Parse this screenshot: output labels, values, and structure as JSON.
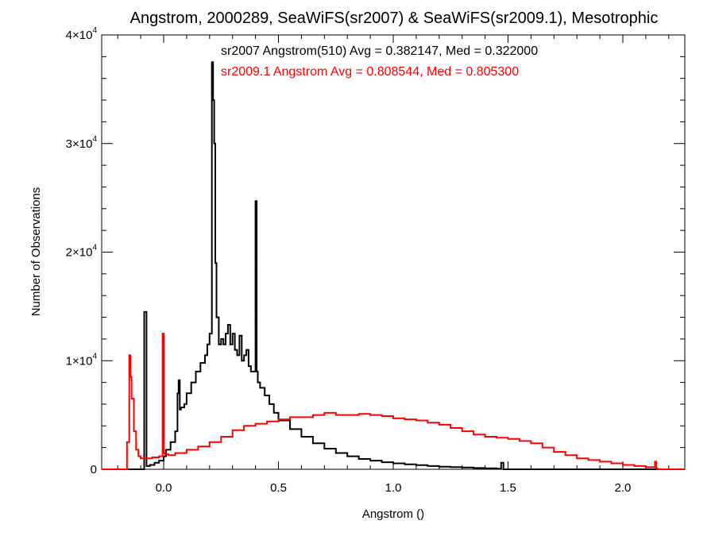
{
  "chart_data": {
    "type": "line",
    "title": "Angstrom, 2000289, SeaWiFS(sr2007) & SeaWiFS(sr2009.1), Mesotrophic",
    "xlabel": "Angstrom ()",
    "ylabel": "Number of Observations",
    "xlim": [
      -0.27,
      2.27
    ],
    "ylim": [
      0,
      40000
    ],
    "x_ticks": [
      {
        "value": 0.0,
        "label": "0.0"
      },
      {
        "value": 0.5,
        "label": "0.5"
      },
      {
        "value": 1.0,
        "label": "1.0"
      },
      {
        "value": 1.5,
        "label": "1.5"
      },
      {
        "value": 2.0,
        "label": "2.0"
      }
    ],
    "y_ticks": [
      {
        "value": 0,
        "mantissa": "0",
        "exponent": ""
      },
      {
        "value": 10000,
        "mantissa": "1×10",
        "exponent": "4"
      },
      {
        "value": 20000,
        "mantissa": "2×10",
        "exponent": "4"
      },
      {
        "value": 30000,
        "mantissa": "3×10",
        "exponent": "4"
      },
      {
        "value": 40000,
        "mantissa": "4×10",
        "exponent": "4"
      }
    ],
    "grid": false,
    "step": true,
    "annotations": [
      {
        "text": "sr2007 Angstrom(510) Avg = 0.382147, Med = 0.322000",
        "color": "#000000"
      },
      {
        "text": "sr2009.1 Angstrom Avg = 0.808544, Med = 0.805300",
        "color": "#ff0000"
      }
    ],
    "series": [
      {
        "color": "#000000",
        "x": [
          -0.27,
          -0.09,
          -0.085,
          -0.075,
          -0.06,
          -0.04,
          -0.02,
          0.0,
          0.01,
          0.03,
          0.05,
          0.06,
          0.065,
          0.07,
          0.075,
          0.09,
          0.1,
          0.12,
          0.14,
          0.16,
          0.18,
          0.19,
          0.2,
          0.21,
          0.215,
          0.22,
          0.225,
          0.23,
          0.24,
          0.25,
          0.26,
          0.27,
          0.28,
          0.29,
          0.3,
          0.31,
          0.32,
          0.33,
          0.34,
          0.35,
          0.36,
          0.37,
          0.38,
          0.39,
          0.4,
          0.405,
          0.41,
          0.42,
          0.44,
          0.46,
          0.48,
          0.5,
          0.55,
          0.6,
          0.65,
          0.7,
          0.75,
          0.8,
          0.85,
          0.9,
          0.95,
          1.0,
          1.05,
          1.1,
          1.15,
          1.2,
          1.25,
          1.3,
          1.35,
          1.4,
          1.45,
          1.47,
          1.48,
          1.5,
          2.27
        ],
        "y": [
          0,
          0,
          14500,
          300,
          400,
          600,
          800,
          1200,
          1800,
          2500,
          3500,
          7000,
          8200,
          5500,
          5700,
          6000,
          7000,
          8000,
          9000,
          9800,
          10500,
          11500,
          12500,
          37500,
          34000,
          30000,
          19000,
          14000,
          11500,
          12000,
          11500,
          12500,
          13300,
          11500,
          12500,
          11000,
          10500,
          12300,
          10000,
          10500,
          11000,
          9500,
          9000,
          9000,
          24700,
          9000,
          8000,
          7500,
          6800,
          6000,
          5200,
          4500,
          3700,
          3000,
          2400,
          1900,
          1500,
          1200,
          950,
          800,
          650,
          550,
          450,
          380,
          300,
          240,
          200,
          160,
          120,
          90,
          60,
          600,
          0,
          0,
          0
        ]
      },
      {
        "color": "#ff0000",
        "x": [
          -0.27,
          -0.16,
          -0.15,
          -0.145,
          -0.14,
          -0.13,
          -0.12,
          -0.11,
          -0.1,
          -0.08,
          -0.05,
          -0.02,
          -0.005,
          0.0,
          0.005,
          0.02,
          0.05,
          0.1,
          0.15,
          0.2,
          0.25,
          0.3,
          0.35,
          0.4,
          0.45,
          0.5,
          0.55,
          0.6,
          0.65,
          0.7,
          0.75,
          0.8,
          0.85,
          0.9,
          0.95,
          1.0,
          1.05,
          1.1,
          1.15,
          1.2,
          1.25,
          1.3,
          1.35,
          1.4,
          1.45,
          1.5,
          1.55,
          1.6,
          1.65,
          1.7,
          1.75,
          1.8,
          1.85,
          1.9,
          1.95,
          2.0,
          2.05,
          2.1,
          2.14,
          2.145,
          2.15,
          2.27
        ],
        "y": [
          0,
          2500,
          10500,
          8500,
          6500,
          3500,
          1800,
          1200,
          1000,
          1000,
          1100,
          1200,
          12500,
          1500,
          1400,
          1300,
          1500,
          1800,
          2100,
          2500,
          3000,
          3600,
          4000,
          4200,
          4400,
          4600,
          4800,
          4800,
          5000,
          5200,
          5000,
          5000,
          5100,
          5000,
          4900,
          4700,
          4600,
          4500,
          4300,
          4100,
          3800,
          3500,
          3200,
          3000,
          2900,
          2800,
          2600,
          2400,
          2000,
          1600,
          1300,
          1000,
          850,
          700,
          550,
          400,
          300,
          200,
          700,
          100,
          0,
          0
        ]
      }
    ]
  }
}
